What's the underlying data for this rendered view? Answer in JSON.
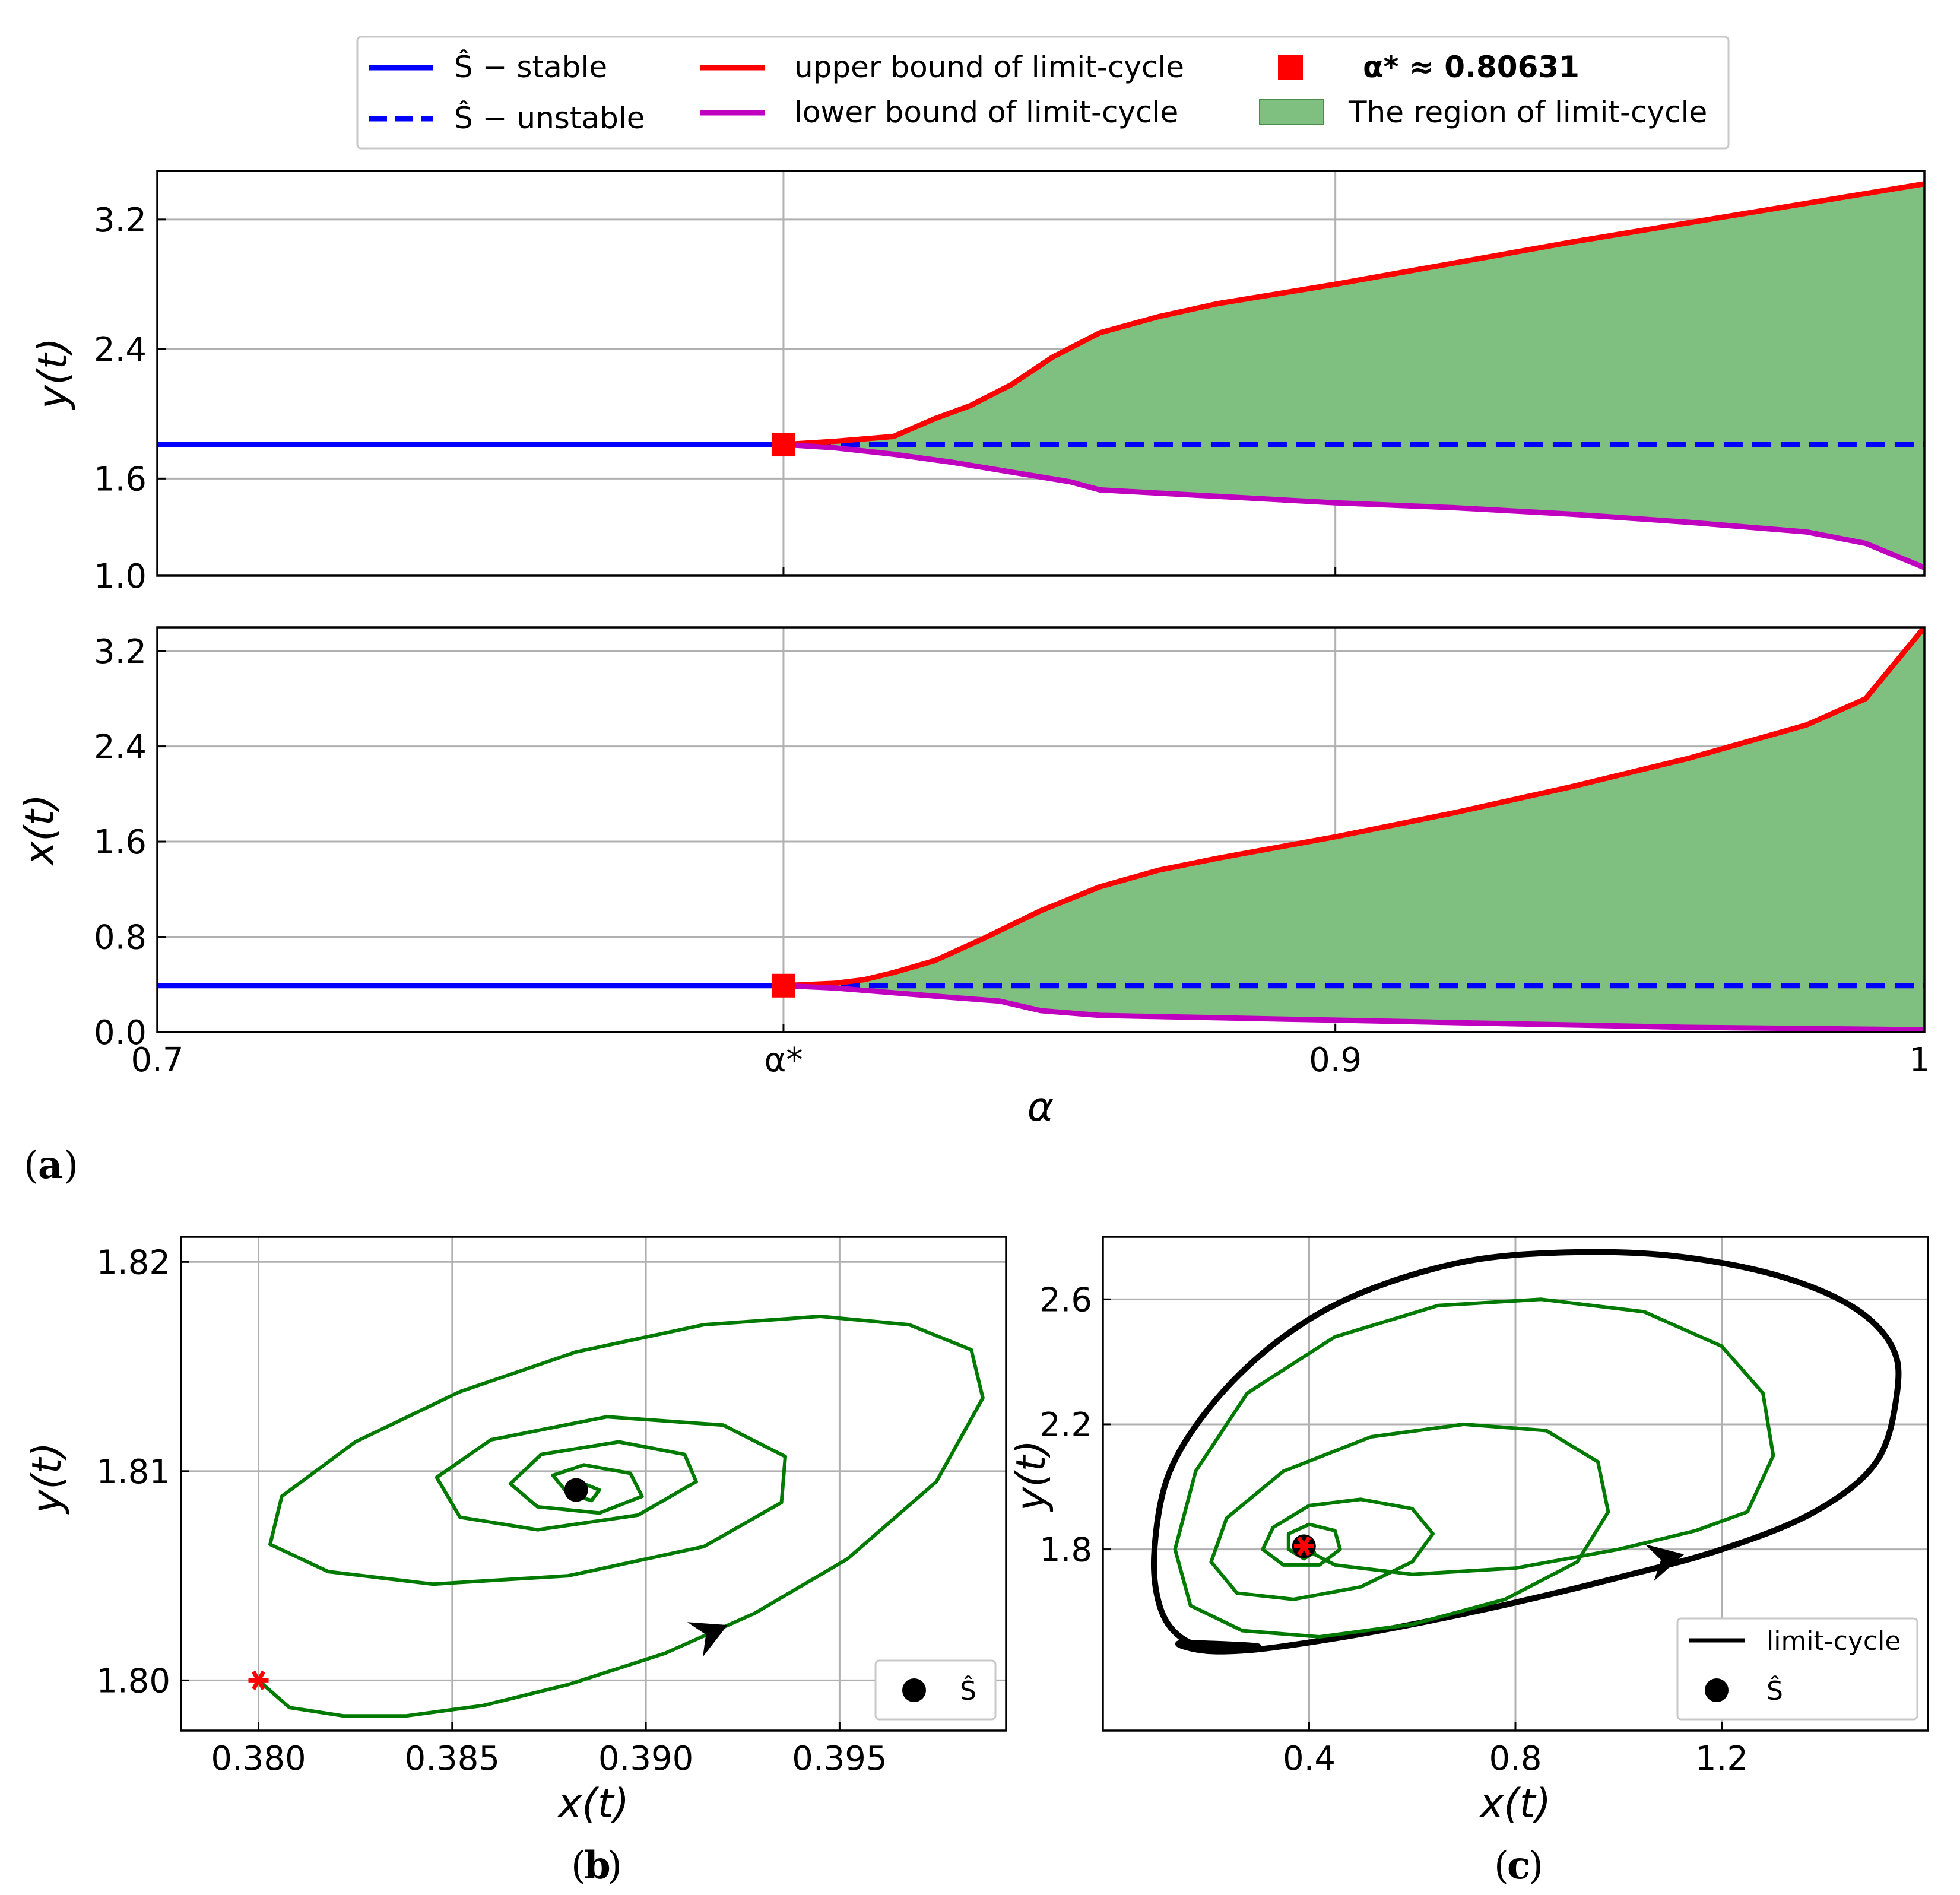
{
  "colors": {
    "stable": "#0000ff",
    "upper": "#ff0000",
    "lower": "#bf00bf",
    "region": "#7fbf7f",
    "trajectory": "#007a00",
    "limit_cycle": "#000000",
    "marker": "#ff0000"
  },
  "legend": {
    "stable": "Ŝ − stable",
    "unstable": "Ŝ − unstable",
    "upper": "upper bound of limit-cycle",
    "lower": "lower bound of limit-cycle",
    "alpha_star": "α* ≈ 0.80631",
    "region": "The region of limit-cycle"
  },
  "captions": {
    "a": "a",
    "b": "b",
    "c": "c"
  },
  "chart_data": [
    {
      "id": "a-top",
      "type": "line",
      "xlabel": "",
      "ylabel": "y(t)",
      "xlim": [
        0.7,
        1.0
      ],
      "ylim": [
        1.0,
        3.5
      ],
      "yticks": [
        "1.0",
        "1.6",
        "2.4",
        "3.2"
      ],
      "ytick_values": [
        1.0,
        1.6,
        2.4,
        3.2
      ],
      "xticks": [
        "0.7",
        "α*",
        "0.9",
        "1"
      ],
      "xtick_values": [
        0.7,
        0.80631,
        0.9,
        1.0
      ],
      "equilibrium": 1.81,
      "alpha_star": 0.80631,
      "series": [
        {
          "name": "upper bound of limit-cycle",
          "x": [
            0.80631,
            0.815,
            0.825,
            0.832,
            0.838,
            0.845,
            0.852,
            0.86,
            0.87,
            0.88,
            0.9,
            0.92,
            0.94,
            0.96,
            0.98,
            1.0
          ],
          "y": [
            1.81,
            1.83,
            1.86,
            1.97,
            2.05,
            2.18,
            2.35,
            2.5,
            2.6,
            2.68,
            2.8,
            2.93,
            3.06,
            3.18,
            3.3,
            3.42
          ]
        },
        {
          "name": "lower bound of limit-cycle",
          "x": [
            0.80631,
            0.815,
            0.825,
            0.835,
            0.845,
            0.855,
            0.86,
            0.87,
            0.88,
            0.9,
            0.92,
            0.94,
            0.96,
            0.98,
            0.99,
            1.0
          ],
          "y": [
            1.81,
            1.79,
            1.75,
            1.7,
            1.64,
            1.58,
            1.53,
            1.51,
            1.49,
            1.45,
            1.42,
            1.38,
            1.33,
            1.27,
            1.2,
            1.05
          ]
        }
      ]
    },
    {
      "id": "a-bottom",
      "type": "line",
      "xlabel": "α",
      "ylabel": "x(t)",
      "xlim": [
        0.7,
        1.0
      ],
      "ylim": [
        0.0,
        3.4
      ],
      "yticks": [
        "0.0",
        "0.8",
        "1.6",
        "2.4",
        "3.2"
      ],
      "ytick_values": [
        0.0,
        0.8,
        1.6,
        2.4,
        3.2
      ],
      "xticks": [
        "0.7",
        "α*",
        "0.9",
        "1"
      ],
      "xtick_values": [
        0.7,
        0.80631,
        0.9,
        1.0
      ],
      "equilibrium": 0.39,
      "alpha_star": 0.80631,
      "series": [
        {
          "name": "upper bound of limit-cycle",
          "x": [
            0.80631,
            0.815,
            0.82,
            0.825,
            0.832,
            0.84,
            0.85,
            0.86,
            0.87,
            0.88,
            0.9,
            0.92,
            0.94,
            0.96,
            0.98,
            0.99,
            1.0
          ],
          "y": [
            0.39,
            0.41,
            0.44,
            0.5,
            0.6,
            0.78,
            1.02,
            1.22,
            1.36,
            1.46,
            1.64,
            1.84,
            2.06,
            2.3,
            2.58,
            2.8,
            3.4
          ]
        },
        {
          "name": "lower bound of limit-cycle",
          "x": [
            0.80631,
            0.815,
            0.825,
            0.835,
            0.843,
            0.85,
            0.86,
            0.88,
            0.9,
            0.92,
            0.94,
            0.96,
            0.98,
            1.0
          ],
          "y": [
            0.39,
            0.37,
            0.33,
            0.29,
            0.26,
            0.18,
            0.14,
            0.12,
            0.1,
            0.08,
            0.06,
            0.04,
            0.03,
            0.02
          ]
        }
      ]
    },
    {
      "id": "b",
      "type": "line",
      "xlabel": "x(t)",
      "ylabel": "y(t)",
      "xlim": [
        0.378,
        0.3993
      ],
      "ylim": [
        1.7976,
        1.8212
      ],
      "xticks": [
        "0.380",
        "0.385",
        "0.390",
        "0.395"
      ],
      "xtick_values": [
        0.38,
        0.385,
        0.39,
        0.395
      ],
      "yticks": [
        "1.80",
        "1.81",
        "1.82"
      ],
      "ytick_values": [
        1.8,
        1.81,
        1.82
      ],
      "initial_point": [
        0.38,
        1.8
      ],
      "equilibrium": [
        0.3882,
        1.8091
      ],
      "legend": [
        "Ŝ"
      ],
      "legend_placement": "bottom-right",
      "series": [
        {
          "name": "trajectory",
          "x": [
            0.38,
            0.3808,
            0.3822,
            0.3838,
            0.3858,
            0.388,
            0.3905,
            0.3928,
            0.3952,
            0.3975,
            0.3987,
            0.3984,
            0.3968,
            0.3945,
            0.3915,
            0.3882,
            0.3852,
            0.3825,
            0.3806,
            0.3803,
            0.3818,
            0.3845,
            0.388,
            0.3915,
            0.3935,
            0.3936,
            0.392,
            0.389,
            0.386,
            0.3846,
            0.3852,
            0.3872,
            0.3898,
            0.3913,
            0.391,
            0.3893,
            0.3873,
            0.3865,
            0.3872,
            0.3888,
            0.3899,
            0.3896,
            0.3884,
            0.3876,
            0.388,
            0.3886,
            0.3888,
            0.3884,
            0.3882
          ],
          "y": [
            1.8,
            1.7987,
            1.7983,
            1.7983,
            1.7988,
            1.7998,
            1.8013,
            1.8032,
            1.8058,
            1.8095,
            1.8135,
            1.8158,
            1.817,
            1.8174,
            1.817,
            1.8157,
            1.8138,
            1.8114,
            1.8088,
            1.8065,
            1.8052,
            1.8046,
            1.805,
            1.8064,
            1.8085,
            1.8107,
            1.8122,
            1.8126,
            1.8115,
            1.8097,
            1.8078,
            1.8072,
            1.8079,
            1.8095,
            1.8108,
            1.8114,
            1.8108,
            1.8094,
            1.8083,
            1.808,
            1.8088,
            1.8099,
            1.8103,
            1.8098,
            1.8089,
            1.8086,
            1.8091,
            1.8094,
            1.8091
          ]
        }
      ]
    },
    {
      "id": "c",
      "type": "line",
      "xlabel": "x(t)",
      "ylabel": "y(t)",
      "xlim": [
        0.0,
        1.6
      ],
      "ylim": [
        1.22,
        2.8
      ],
      "xticks": [
        "0.4",
        "0.8",
        "1.2"
      ],
      "xtick_values": [
        0.4,
        0.8,
        1.2
      ],
      "yticks": [
        "1.8",
        "2.2",
        "2.6"
      ],
      "ytick_values": [
        1.8,
        2.2,
        2.6
      ],
      "initial_point": [
        0.39,
        1.81
      ],
      "equilibrium": [
        0.39,
        1.81
      ],
      "legend": [
        "limit-cycle",
        "Ŝ"
      ],
      "legend_placement": "bottom-right",
      "series": [
        {
          "name": "limit-cycle",
          "x": [
            0.15,
            0.2,
            0.3,
            0.45,
            0.6,
            0.8,
            1.0,
            1.2,
            1.38,
            1.5,
            1.54,
            1.53,
            1.45,
            1.3,
            1.1,
            0.9,
            0.7,
            0.5,
            0.35,
            0.22,
            0.13,
            0.1,
            0.11,
            0.15,
            0.22,
            0.3
          ],
          "y": [
            1.5,
            1.475,
            1.48,
            1.515,
            1.56,
            1.63,
            1.71,
            1.8,
            1.92,
            2.08,
            2.3,
            2.45,
            2.58,
            2.68,
            2.74,
            2.75,
            2.72,
            2.62,
            2.48,
            2.28,
            2.05,
            1.8,
            1.62,
            1.52,
            1.48,
            1.49
          ]
        },
        {
          "name": "trajectory",
          "x": [
            0.38,
            0.45,
            0.6,
            0.8,
            1.0,
            1.15,
            1.25,
            1.3,
            1.28,
            1.2,
            1.05,
            0.85,
            0.65,
            0.45,
            0.28,
            0.18,
            0.14,
            0.17,
            0.27,
            0.42,
            0.6,
            0.78,
            0.92,
            0.98,
            0.96,
            0.86,
            0.7,
            0.52,
            0.35,
            0.24,
            0.21,
            0.26,
            0.37,
            0.5,
            0.6,
            0.64,
            0.6,
            0.5,
            0.4,
            0.33,
            0.31,
            0.35,
            0.42,
            0.46,
            0.45,
            0.4,
            0.36,
            0.36,
            0.39,
            0.41,
            0.4,
            0.39
          ],
          "y": [
            1.81,
            1.75,
            1.72,
            1.74,
            1.8,
            1.86,
            1.92,
            2.1,
            2.3,
            2.45,
            2.56,
            2.6,
            2.58,
            2.48,
            2.3,
            2.05,
            1.8,
            1.62,
            1.54,
            1.52,
            1.56,
            1.64,
            1.76,
            1.92,
            2.08,
            2.18,
            2.2,
            2.16,
            2.05,
            1.9,
            1.76,
            1.66,
            1.64,
            1.68,
            1.76,
            1.85,
            1.93,
            1.96,
            1.94,
            1.87,
            1.8,
            1.75,
            1.75,
            1.8,
            1.86,
            1.88,
            1.85,
            1.8,
            1.77,
            1.79,
            1.82,
            1.81
          ]
        }
      ]
    }
  ]
}
